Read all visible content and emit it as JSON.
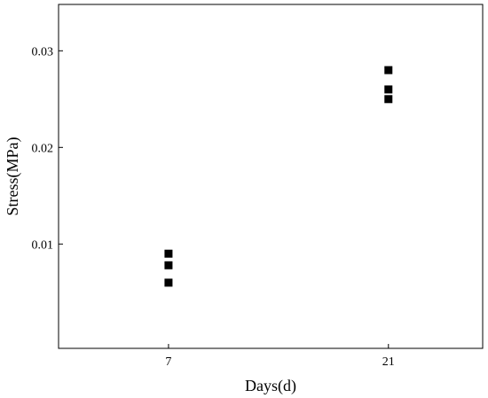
{
  "chart_data": {
    "type": "scatter",
    "title": "",
    "xlabel": "Days(d)",
    "ylabel": "Stress(MPa)",
    "x_ticks": [
      7,
      21
    ],
    "x_tick_labels": [
      "7",
      "21"
    ],
    "y_ticks": [
      0.01,
      0.02,
      0.03
    ],
    "y_tick_labels": [
      "0.01",
      "0.02",
      "0.03"
    ],
    "xlim": [
      0,
      27
    ],
    "ylim": [
      -0.0008,
      0.0348
    ],
    "grid": false,
    "legend": "none",
    "marker": "square",
    "marker_color": "#000000",
    "series": [
      {
        "points": [
          {
            "x": 7,
            "y": 0.009
          },
          {
            "x": 7,
            "y": 0.0078
          },
          {
            "x": 7,
            "y": 0.006
          },
          {
            "x": 21,
            "y": 0.028
          },
          {
            "x": 21,
            "y": 0.026
          },
          {
            "x": 21,
            "y": 0.025
          }
        ]
      }
    ]
  }
}
